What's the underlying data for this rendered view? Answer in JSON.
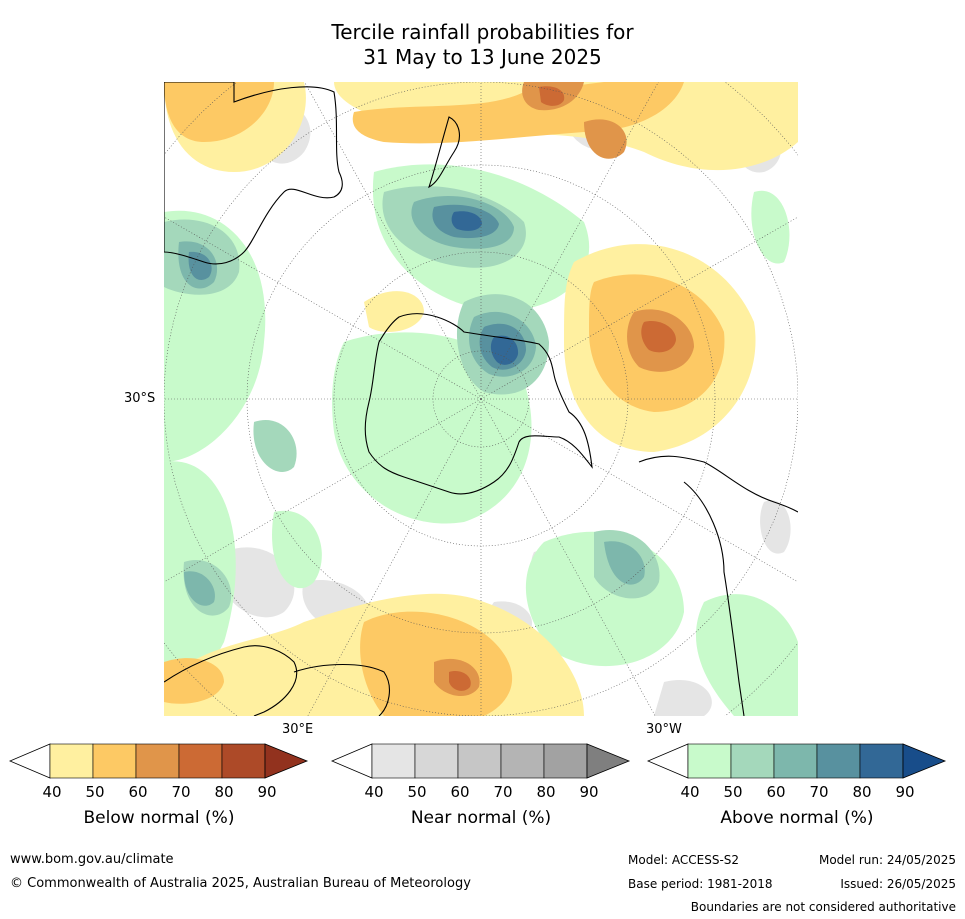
{
  "title": {
    "line1": "Tercile rainfall probabilities for",
    "line2": "31 May to 13 June 2025"
  },
  "map": {
    "lat_label": "30°S",
    "lon_label_left": "30°E",
    "lon_label_right": "30°W"
  },
  "colorbars": [
    {
      "title": "Below normal (%)",
      "ticks": [
        "40",
        "50",
        "60",
        "70",
        "80",
        "90"
      ],
      "colors": [
        "#ffffff",
        "#fff0a0",
        "#fdc964",
        "#e0954a",
        "#cc6a34",
        "#ad4a28",
        "#92321e"
      ]
    },
    {
      "title": "Near normal (%)",
      "ticks": [
        "40",
        "50",
        "60",
        "70",
        "80",
        "90"
      ],
      "colors": [
        "#ffffff",
        "#e5e5e5",
        "#d7d7d7",
        "#c6c6c6",
        "#b4b4b4",
        "#a2a2a2",
        "#7f7f7f"
      ]
    },
    {
      "title": "Above normal (%)",
      "ticks": [
        "40",
        "50",
        "60",
        "70",
        "80",
        "90"
      ],
      "colors": [
        "#ffffff",
        "#c8facb",
        "#a4d8bb",
        "#7db7ac",
        "#58919f",
        "#326896",
        "#184d8a"
      ]
    }
  ],
  "footer": {
    "website": "www.bom.gov.au/climate",
    "copyright": "© Commonwealth of Australia 2025, Australian Bureau of Meteorology",
    "model": "Model: ACCESS-S2",
    "base_period": "Base period: 1981-2018",
    "model_run": "Model run: 24/05/2025",
    "issued": "Issued: 26/05/2025",
    "disclaimer": "Boundaries are not considered authoritative"
  }
}
